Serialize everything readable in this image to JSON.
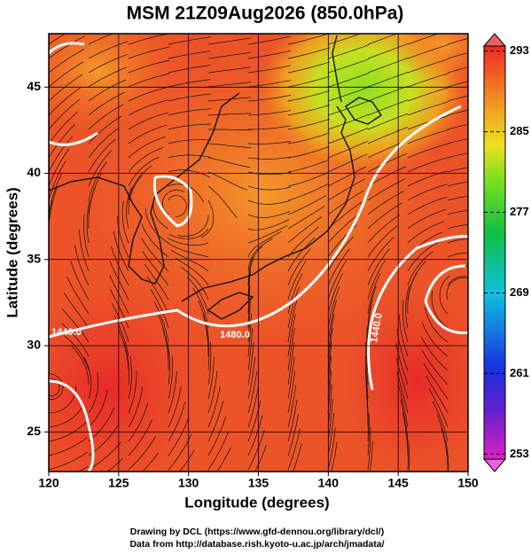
{
  "chart_data": {
    "type": "map",
    "title": "MSM 21Z09Aug2026 (850.0hPa)",
    "xlabel": "Longitude (degrees)",
    "ylabel": "Latitude  (degrees)",
    "xlim": [
      120,
      150
    ],
    "xticks": [
      120,
      125,
      130,
      135,
      140,
      145,
      150
    ],
    "ylim": [
      22.7,
      48.1
    ],
    "yticks": [
      25,
      30,
      35,
      40,
      45
    ],
    "grid": true,
    "colorbar": {
      "lim": [
        252.5,
        293.5
      ],
      "ticks": [
        253,
        261,
        269,
        277,
        285,
        293
      ]
    },
    "annotations": [
      "1440.0",
      "1480.0",
      "1440.0"
    ],
    "footer": [
      "Drawing by DCL (https://www.gfd-dennou.org/library/dcl/)",
      "Data from http://database.rish.kyoto-u.ac.jp/arch/jmadata/"
    ]
  }
}
